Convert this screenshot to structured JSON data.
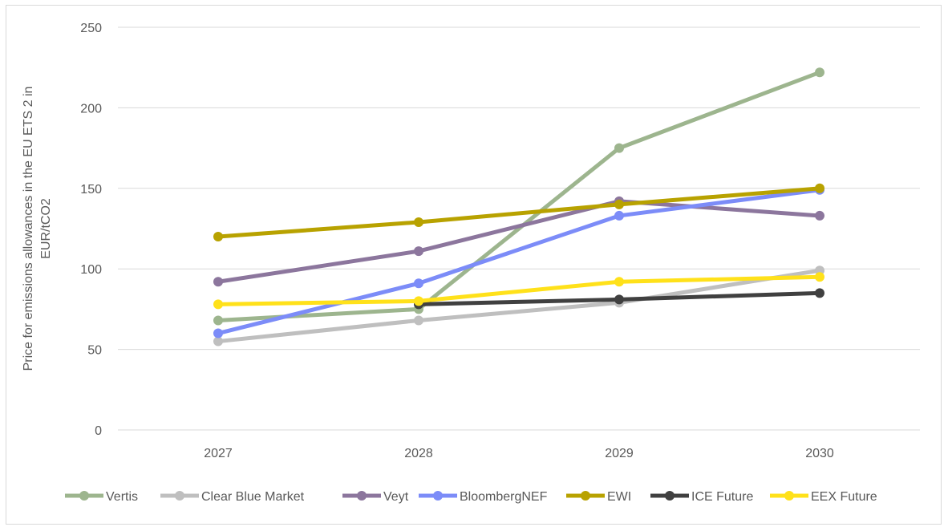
{
  "chart_data": {
    "type": "line",
    "title": "",
    "xlabel": "",
    "ylabel": "Price for emissions allowances in the EU ETS 2 in EUR/tCO2",
    "ylabel_lines": [
      "Price for emissions allowances in the EU ETS 2 in",
      "EUR/tCO2"
    ],
    "categories": [
      "2027",
      "2028",
      "2029",
      "2030"
    ],
    "ylim": [
      0,
      250
    ],
    "yticks": [
      "0",
      "50",
      "100",
      "150",
      "200",
      "250"
    ],
    "grid": true,
    "legend": "bottom",
    "series": [
      {
        "name": "Vertis",
        "color": "#9db58e",
        "values": [
          68,
          75,
          175,
          222
        ]
      },
      {
        "name": "Clear Blue Market",
        "color": "#bfbfbf",
        "values": [
          55,
          68,
          79,
          99
        ]
      },
      {
        "name": "Veyt",
        "color": "#8c769d",
        "values": [
          92,
          111,
          142,
          133
        ]
      },
      {
        "name": "BloombergNEF",
        "color": "#7c8cf8",
        "values": [
          60,
          91,
          133,
          149
        ]
      },
      {
        "name": "EWI",
        "color": "#b8a200",
        "values": [
          120,
          129,
          140,
          150
        ]
      },
      {
        "name": "ICE Future",
        "color": "#404040",
        "values": [
          null,
          78,
          81,
          85
        ]
      },
      {
        "name": "EEX Future",
        "color": "#ffe11a",
        "values": [
          78,
          80,
          92,
          95
        ]
      }
    ]
  }
}
